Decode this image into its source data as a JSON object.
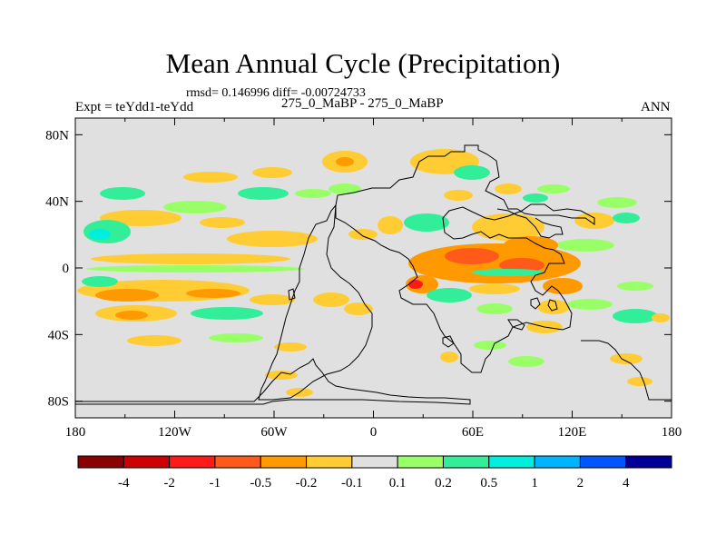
{
  "chart_data": {
    "type": "contour-map",
    "title": "Mean Annual Cycle (Precipitation)",
    "stats": "rmsd= 0.146996 diff= -0.00724733",
    "left_label": "Expt = teYdd1-teYdd",
    "center_label": "275_0_MaBP - 275_0_MaBP",
    "right_label": "ANN",
    "x_ticks": [
      "180",
      "120W",
      "60W",
      "0",
      "60E",
      "120E",
      "180"
    ],
    "y_ticks": [
      "80N",
      "40N",
      "0",
      "40S",
      "80S"
    ],
    "lon_range": [
      -180,
      180
    ],
    "lat_range": [
      -90,
      90
    ],
    "colorbar": {
      "levels": [
        "-4",
        "-2",
        "-1",
        "-0.5",
        "-0.2",
        "-0.1",
        "0.1",
        "0.2",
        "0.5",
        "1",
        "2",
        "4"
      ],
      "colors": [
        "#8b0000",
        "#cc0000",
        "#ff1a1a",
        "#ff5a1a",
        "#ff9900",
        "#ffcc33",
        "#e0e0e0",
        "#99ff66",
        "#33ee99",
        "#00eedd",
        "#00b4ff",
        "#0055ff",
        "#000099"
      ]
    }
  }
}
